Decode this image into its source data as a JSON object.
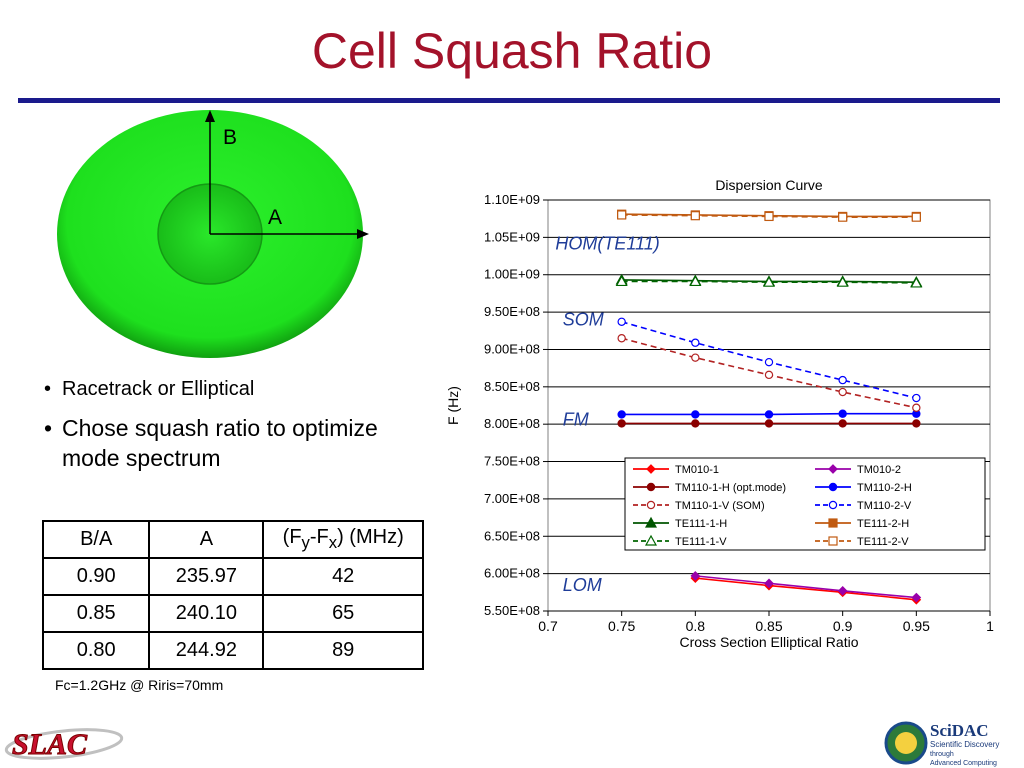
{
  "slide": {
    "title": "Cell Squash Ratio",
    "title_color": "#a3122a",
    "rule_color": "#1a1a8c",
    "diagram": {
      "label_b": "B",
      "label_a": "A",
      "fill_color": "#22dd22"
    },
    "bullets": [
      "Racetrack or Elliptical",
      "Chose squash ratio to optimize mode spectrum"
    ],
    "table": {
      "headers": {
        "col1": "B/A",
        "col2": "A",
        "col3_prefix": "(F",
        "col3_sub1": "y",
        "col3_mid": "-F",
        "col3_sub2": "x",
        "col3_suffix": ") (MHz)"
      },
      "rows": [
        {
          "ratio": "0.90",
          "a": "235.97",
          "delta": "42"
        },
        {
          "ratio": "0.85",
          "a": "240.10",
          "delta": "65"
        },
        {
          "ratio": "0.80",
          "a": "244.92",
          "delta": "89"
        }
      ]
    },
    "footnote": "Fc=1.2GHz @ Riris=70mm",
    "logos": {
      "left": "SLAC",
      "right_title": "SciDAC",
      "right_line1": "Scientific Discovery",
      "right_line2": "through",
      "right_line3": "Advanced Computing"
    }
  },
  "chart_data": {
    "type": "line",
    "title": "Dispersion Curve",
    "xlabel": "Cross Section Elliptical Ratio",
    "ylabel": "F (Hz)",
    "xlim": [
      0.7,
      1
    ],
    "ylim": [
      550000000,
      1100000000
    ],
    "x_ticks": [
      0.7,
      0.75,
      0.8,
      0.85,
      0.9,
      0.95,
      1
    ],
    "x_tick_labels": [
      "0.7",
      "0.75",
      "0.8",
      "0.85",
      "0.9",
      "0.95",
      "1"
    ],
    "y_ticks": [
      550000000,
      600000000,
      650000000,
      700000000,
      750000000,
      800000000,
      850000000,
      900000000,
      950000000,
      1000000000,
      1050000000,
      1100000000
    ],
    "y_tick_labels": [
      "5.50E+08",
      "6.00E+08",
      "6.50E+08",
      "7.00E+08",
      "7.50E+08",
      "8.00E+08",
      "8.50E+08",
      "9.00E+08",
      "9.50E+08",
      "1.00E+09",
      "1.05E+09",
      "1.10E+09"
    ],
    "grid": "horizontal",
    "legend_position": "bottom-center inside",
    "annotations": [
      {
        "text": "HOM(TE111)",
        "x": 0.705,
        "y": 1034000000
      },
      {
        "text": "SOM",
        "x": 0.71,
        "y": 932000000
      },
      {
        "text": "FM",
        "x": 0.71,
        "y": 798000000
      },
      {
        "text": "LOM",
        "x": 0.71,
        "y": 577000000
      }
    ],
    "series": [
      {
        "name": "TM010-1",
        "color": "#ff0000",
        "marker": "diamond",
        "fill": true,
        "dash": false,
        "x": [
          0.8,
          0.85,
          0.9,
          0.95
        ],
        "y": [
          594000000,
          584000000,
          575000000,
          565000000
        ]
      },
      {
        "name": "TM010-2",
        "color": "#9900aa",
        "marker": "diamond",
        "fill": true,
        "dash": false,
        "x": [
          0.8,
          0.85,
          0.9,
          0.95
        ],
        "y": [
          597000000,
          587000000,
          577000000,
          568000000
        ]
      },
      {
        "name": "TM110-1-H (opt.mode)",
        "color": "#8b0000",
        "marker": "circle",
        "fill": true,
        "dash": false,
        "x": [
          0.75,
          0.8,
          0.85,
          0.9,
          0.95
        ],
        "y": [
          801000000,
          801000000,
          801000000,
          801000000,
          801000000
        ]
      },
      {
        "name": "TM110-2-H",
        "color": "#0000ff",
        "marker": "circle",
        "fill": true,
        "dash": false,
        "x": [
          0.75,
          0.8,
          0.85,
          0.9,
          0.95
        ],
        "y": [
          813000000,
          813000000,
          813000000,
          814000000,
          814000000
        ]
      },
      {
        "name": "TM110-1-V (SOM)",
        "color": "#b22222",
        "marker": "circle",
        "fill": false,
        "dash": true,
        "x": [
          0.75,
          0.8,
          0.85,
          0.9,
          0.95
        ],
        "y": [
          915000000,
          889000000,
          866000000,
          843000000,
          822000000
        ]
      },
      {
        "name": "TM110-2-V",
        "color": "#0000ff",
        "marker": "circle",
        "fill": false,
        "dash": true,
        "x": [
          0.75,
          0.8,
          0.85,
          0.9,
          0.95
        ],
        "y": [
          937000000,
          909000000,
          883000000,
          859000000,
          835000000
        ]
      },
      {
        "name": "TE111-1-H",
        "color": "#005500",
        "marker": "triangle",
        "fill": true,
        "dash": false,
        "x": [
          0.75,
          0.8,
          0.85,
          0.9,
          0.95
        ],
        "y": [
          993000000,
          992000000,
          991000000,
          991000000,
          990000000
        ]
      },
      {
        "name": "TE111-2-H",
        "color": "#c05a11",
        "marker": "square",
        "fill": true,
        "dash": false,
        "x": [
          0.75,
          0.8,
          0.85,
          0.9,
          0.95
        ],
        "y": [
          1081000000,
          1080000000,
          1079000000,
          1078000000,
          1078000000
        ]
      },
      {
        "name": "TE111-1-V",
        "color": "#006600",
        "marker": "triangle",
        "fill": false,
        "dash": true,
        "x": [
          0.75,
          0.8,
          0.85,
          0.9,
          0.95
        ],
        "y": [
          991000000,
          991000000,
          990000000,
          990000000,
          989000000
        ]
      },
      {
        "name": "TE111-2-V",
        "color": "#c05a11",
        "marker": "square",
        "fill": false,
        "dash": true,
        "x": [
          0.75,
          0.8,
          0.85,
          0.9,
          0.95
        ],
        "y": [
          1080000000,
          1079000000,
          1078000000,
          1077000000,
          1077000000
        ]
      }
    ]
  }
}
